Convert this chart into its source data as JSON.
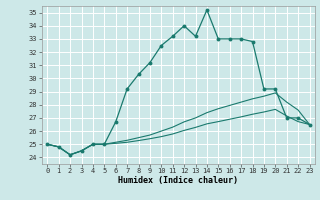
{
  "xlabel": "Humidex (Indice chaleur)",
  "bg_color": "#cde8e8",
  "grid_color": "#ffffff",
  "line_color": "#1a7a6e",
  "xlim": [
    -0.5,
    23.5
  ],
  "ylim": [
    23.5,
    35.5
  ],
  "xticks": [
    0,
    1,
    2,
    3,
    4,
    5,
    6,
    7,
    8,
    9,
    10,
    11,
    12,
    13,
    14,
    15,
    16,
    17,
    18,
    19,
    20,
    21,
    22,
    23
  ],
  "yticks": [
    24,
    25,
    26,
    27,
    28,
    29,
    30,
    31,
    32,
    33,
    34,
    35
  ],
  "main_y": [
    25.0,
    24.8,
    24.2,
    24.5,
    25.0,
    25.0,
    26.7,
    29.2,
    30.3,
    31.2,
    32.5,
    33.2,
    34.0,
    33.2,
    35.2,
    33.0,
    33.0,
    33.0,
    32.8,
    29.2,
    29.2,
    27.0,
    27.0,
    26.5
  ],
  "line2_y": [
    25.0,
    24.8,
    24.2,
    24.5,
    25.0,
    25.0,
    25.15,
    25.3,
    25.5,
    25.7,
    26.0,
    26.3,
    26.7,
    27.0,
    27.4,
    27.7,
    27.95,
    28.2,
    28.45,
    28.65,
    28.9,
    28.2,
    27.6,
    26.5
  ],
  "line3_y": [
    25.0,
    24.8,
    24.2,
    24.5,
    25.0,
    25.0,
    25.07,
    25.15,
    25.28,
    25.42,
    25.58,
    25.78,
    26.05,
    26.28,
    26.55,
    26.72,
    26.9,
    27.08,
    27.28,
    27.45,
    27.65,
    27.15,
    26.72,
    26.5
  ]
}
